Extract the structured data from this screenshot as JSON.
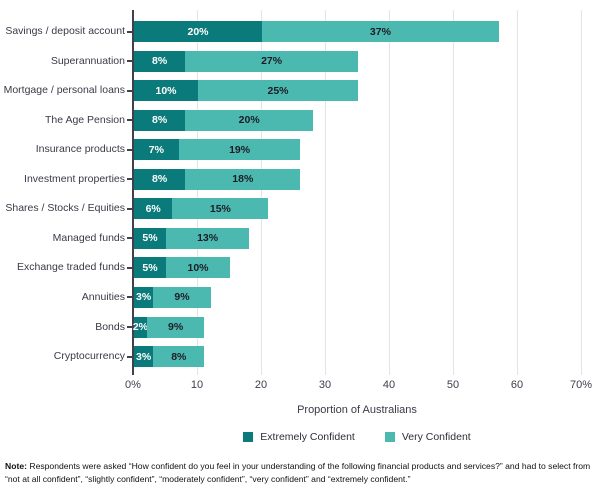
{
  "chart_data": {
    "type": "bar",
    "orientation": "horizontal",
    "stacked": true,
    "title": "",
    "categories": [
      "Savings / deposit account",
      "Superannuation",
      "Mortgage / personal loans",
      "The Age Pension",
      "Insurance products",
      "Investment properties",
      "Shares / Stocks / Equities",
      "Managed funds",
      "Exchange traded funds",
      "Annuities",
      "Bonds",
      "Cryptocurrency"
    ],
    "series": [
      {
        "name": "Extremely Confident",
        "color": "#0b7a7a",
        "label_color": "#ffffff",
        "values": [
          20,
          8,
          10,
          8,
          7,
          8,
          6,
          5,
          5,
          3,
          2,
          3
        ]
      },
      {
        "name": "Very Confident",
        "color": "#4cb9b1",
        "label_color": "#1c1c26",
        "values": [
          37,
          27,
          25,
          20,
          19,
          18,
          15,
          13,
          10,
          9,
          9,
          8
        ]
      }
    ],
    "bar_label_suffix": "%",
    "xlabel": "Proportion of Australians",
    "ylabel": "",
    "xlim": [
      0,
      70
    ],
    "x_ticks": [
      {
        "value": 0,
        "label": "0%"
      },
      {
        "value": 10,
        "label": "10"
      },
      {
        "value": 20,
        "label": "20"
      },
      {
        "value": 30,
        "label": "30"
      },
      {
        "value": 40,
        "label": "40"
      },
      {
        "value": 50,
        "label": "50"
      },
      {
        "value": 60,
        "label": "60"
      },
      {
        "value": 70,
        "label": "70%"
      }
    ],
    "grid": "vertical",
    "legend_position": "bottom"
  },
  "legend": {
    "items": [
      {
        "label": "Extremely Confident",
        "color": "#0b7a7a"
      },
      {
        "label": "Very Confident",
        "color": "#4cb9b1"
      }
    ]
  },
  "footnote": {
    "label": "Note:",
    "text": " Respondents were asked “How confident do you feel in your understanding of the following financial products and services?” and had to select from “not at all confident”, “slightly confident”, “moderately confident”, “very confident” and “extremely confident.”"
  },
  "colors": {
    "extremely_confident": "#0b7a7a",
    "very_confident": "#4cb9b1",
    "axis_line": "#41414e",
    "axis_text": "#3e3e4b",
    "gridline": "#e4e4e8"
  }
}
